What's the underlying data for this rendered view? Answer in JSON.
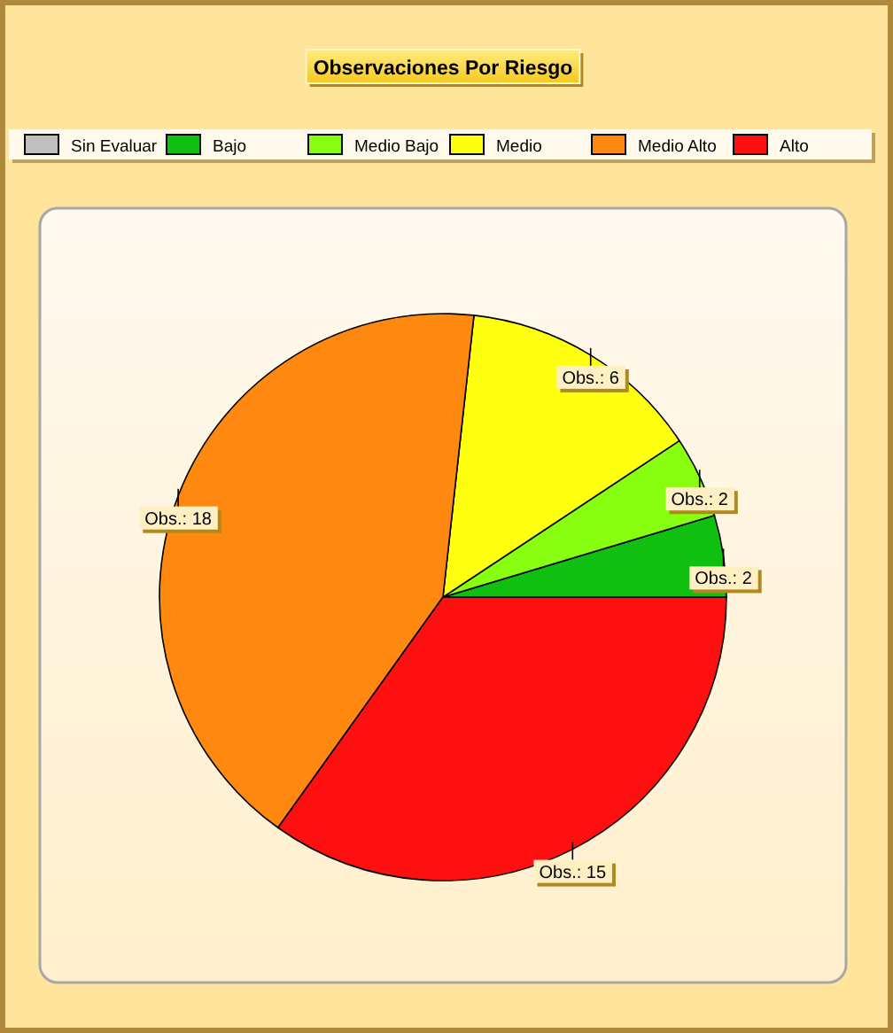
{
  "chart_data": {
    "type": "pie",
    "title": "Observaciones Por Riesgo",
    "categories": [
      "Sin Evaluar",
      "Bajo",
      "Medio Bajo",
      "Medio",
      "Medio Alto",
      "Alto"
    ],
    "values": [
      0,
      2,
      2,
      6,
      18,
      15
    ],
    "colors": [
      "#c0c0c0",
      "#10c010",
      "#88ff10",
      "#ffff10",
      "#ff8810",
      "#ff1010"
    ],
    "value_labels": [
      null,
      "Obs.: 2",
      "Obs.: 2",
      "Obs.: 6",
      "Obs.: 18",
      "Obs.: 15"
    ],
    "legend": "top"
  }
}
